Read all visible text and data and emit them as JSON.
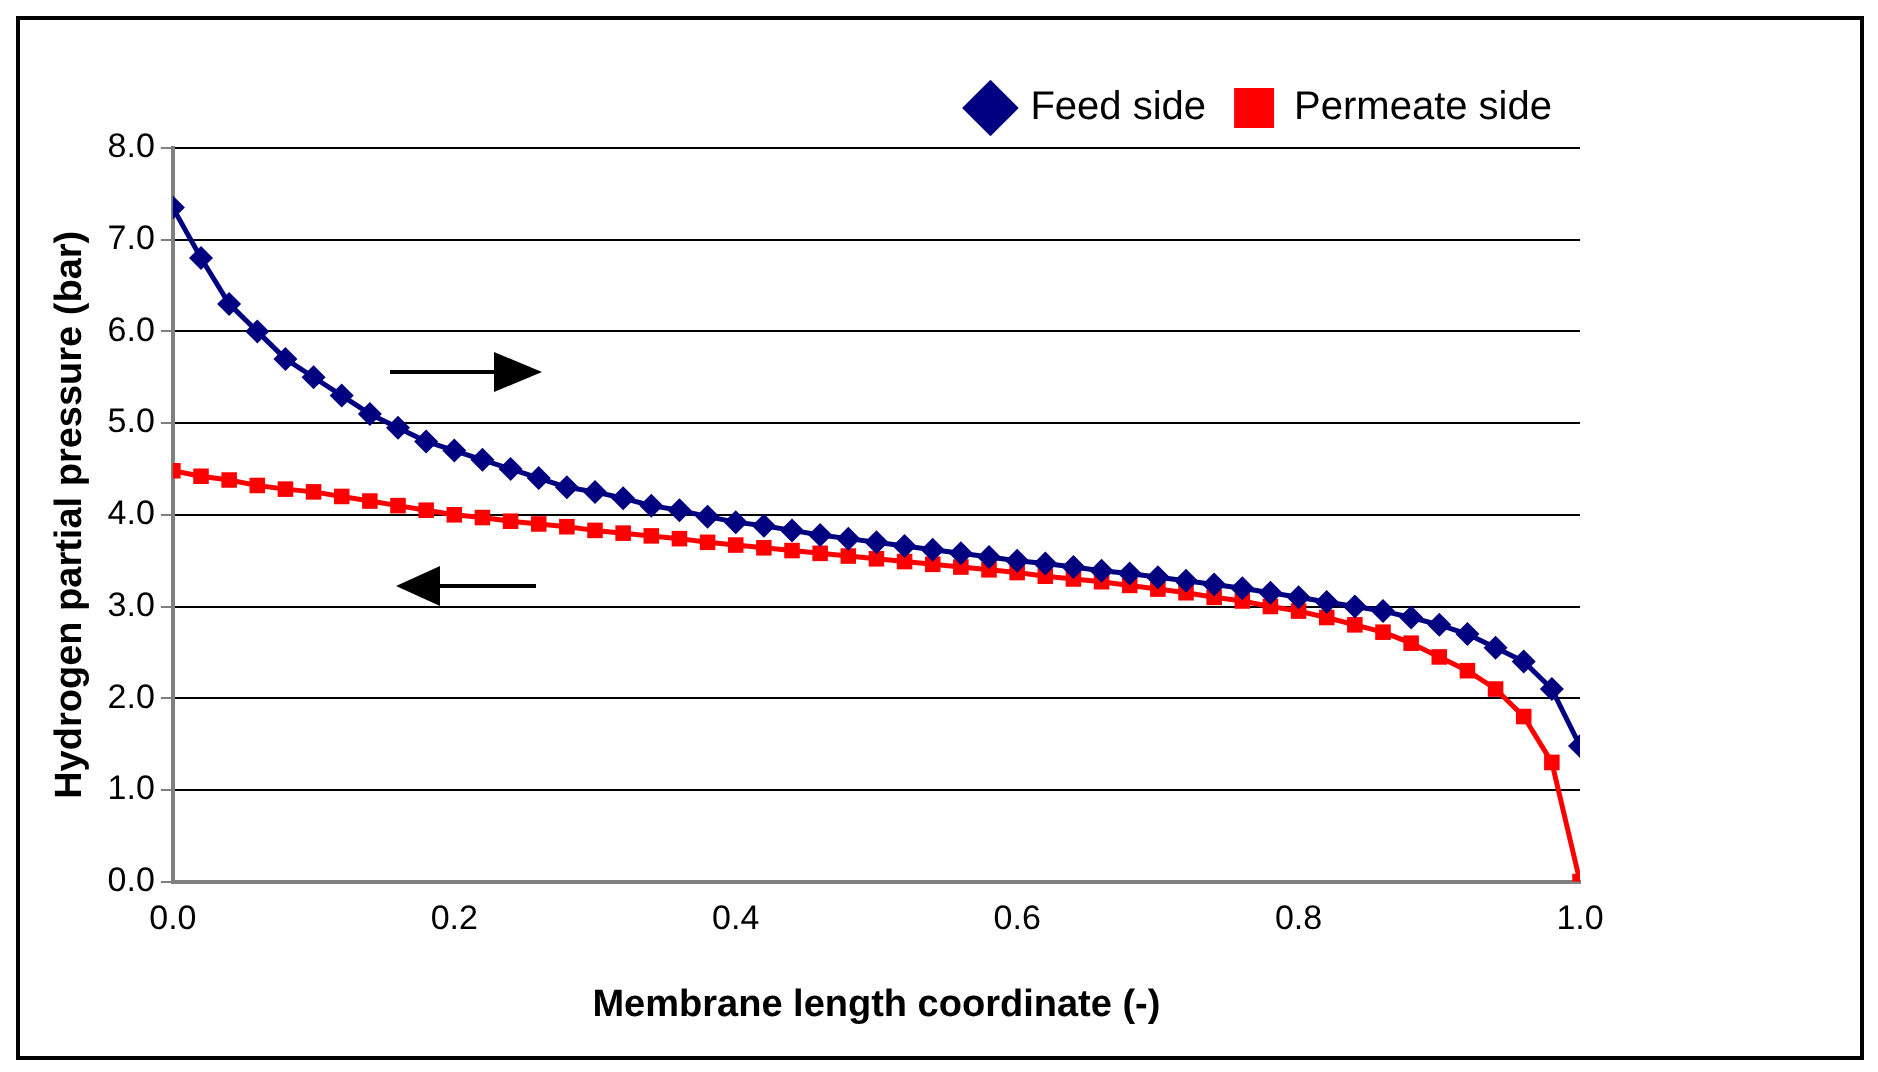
{
  "chart_data": {
    "type": "line",
    "xlabel": "Membrane length coordinate (-)",
    "ylabel": "Hydrogen partial pressure (bar)",
    "x": [
      0,
      0.02,
      0.04,
      0.06,
      0.08,
      0.1,
      0.12,
      0.14,
      0.16,
      0.18,
      0.2,
      0.22,
      0.24,
      0.26,
      0.28,
      0.3,
      0.32,
      0.34,
      0.36,
      0.38,
      0.4,
      0.42,
      0.44,
      0.46,
      0.48,
      0.5,
      0.52,
      0.54,
      0.56,
      0.58,
      0.6,
      0.62,
      0.64,
      0.66,
      0.68,
      0.7,
      0.72,
      0.74,
      0.76,
      0.78,
      0.8,
      0.82,
      0.84,
      0.86,
      0.88,
      0.9,
      0.92,
      0.94,
      0.96,
      0.98,
      1.0
    ],
    "series": [
      {
        "name": "Feed side",
        "color": "#000080",
        "marker": "diamond",
        "values": [
          7.35,
          6.8,
          6.3,
          6.0,
          5.7,
          5.5,
          5.3,
          5.1,
          4.95,
          4.8,
          4.7,
          4.6,
          4.5,
          4.4,
          4.3,
          4.25,
          4.18,
          4.1,
          4.05,
          3.98,
          3.92,
          3.88,
          3.83,
          3.78,
          3.74,
          3.7,
          3.66,
          3.62,
          3.58,
          3.54,
          3.5,
          3.47,
          3.43,
          3.39,
          3.36,
          3.32,
          3.28,
          3.24,
          3.2,
          3.15,
          3.1,
          3.05,
          3.0,
          2.95,
          2.88,
          2.8,
          2.7,
          2.55,
          2.4,
          2.1,
          1.48
        ]
      },
      {
        "name": "Permeate side",
        "color": "#ff0000",
        "marker": "square",
        "values": [
          4.48,
          4.42,
          4.38,
          4.32,
          4.28,
          4.25,
          4.2,
          4.15,
          4.1,
          4.05,
          4.0,
          3.97,
          3.93,
          3.9,
          3.87,
          3.83,
          3.8,
          3.77,
          3.74,
          3.7,
          3.67,
          3.64,
          3.61,
          3.58,
          3.55,
          3.52,
          3.49,
          3.46,
          3.43,
          3.4,
          3.37,
          3.33,
          3.3,
          3.27,
          3.23,
          3.19,
          3.15,
          3.1,
          3.06,
          3.0,
          2.95,
          2.88,
          2.8,
          2.72,
          2.6,
          2.45,
          2.3,
          2.1,
          1.8,
          1.3,
          0
        ]
      }
    ],
    "xlim": [
      0,
      1
    ],
    "xticks": [
      {
        "value": 0,
        "label": "0.0"
      },
      {
        "value": 0.2,
        "label": "0.2"
      },
      {
        "value": 0.4,
        "label": "0.4"
      },
      {
        "value": 0.6,
        "label": "0.6"
      },
      {
        "value": 0.8,
        "label": "0.8"
      },
      {
        "value": 1,
        "label": "1.0"
      }
    ],
    "ylim": [
      0,
      8
    ],
    "yticks": [
      {
        "value": 0,
        "label": "0.0"
      },
      {
        "value": 1,
        "label": "1.0"
      },
      {
        "value": 2,
        "label": "2.0"
      },
      {
        "value": 3,
        "label": "3.0"
      },
      {
        "value": 4,
        "label": "4.0"
      },
      {
        "value": 5,
        "label": "5.0"
      },
      {
        "value": 6,
        "label": "6.0"
      },
      {
        "value": 7,
        "label": "7.0"
      },
      {
        "value": 8,
        "label": "8.0"
      }
    ],
    "grid": "y",
    "legend": "top right",
    "line_style": "solid"
  }
}
